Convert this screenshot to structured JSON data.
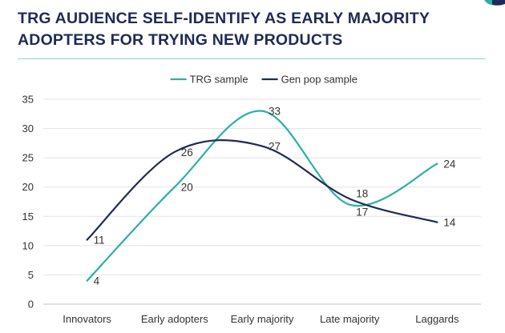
{
  "header": {
    "title_line1": "TRG AUDIENCE SELF-IDENTIFY AS EARLY MAJORITY",
    "title_line2": "ADOPTERS FOR TRYING NEW PRODUCTS"
  },
  "chart_data": {
    "type": "line",
    "title": "TRG AUDIENCE SELF-IDENTIFY AS EARLY MAJORITY ADOPTERS FOR TRYING NEW PRODUCTS",
    "categories": [
      "Innovators",
      "Early adopters",
      "Early majority",
      "Late majority",
      "Laggards"
    ],
    "series": [
      {
        "name": "TRG sample",
        "values": [
          4,
          20,
          33,
          17,
          24
        ],
        "color": "#2bb1a4"
      },
      {
        "name": "Gen pop sample",
        "values": [
          11,
          26,
          27,
          18,
          14
        ],
        "color": "#1f2a55"
      }
    ],
    "yticks": [
      0,
      5,
      10,
      15,
      20,
      25,
      30,
      35
    ],
    "ylim": [
      0,
      35
    ],
    "grid": true,
    "smooth": true,
    "legend_position": "top-center",
    "accent_color": "#8fd3d2"
  }
}
